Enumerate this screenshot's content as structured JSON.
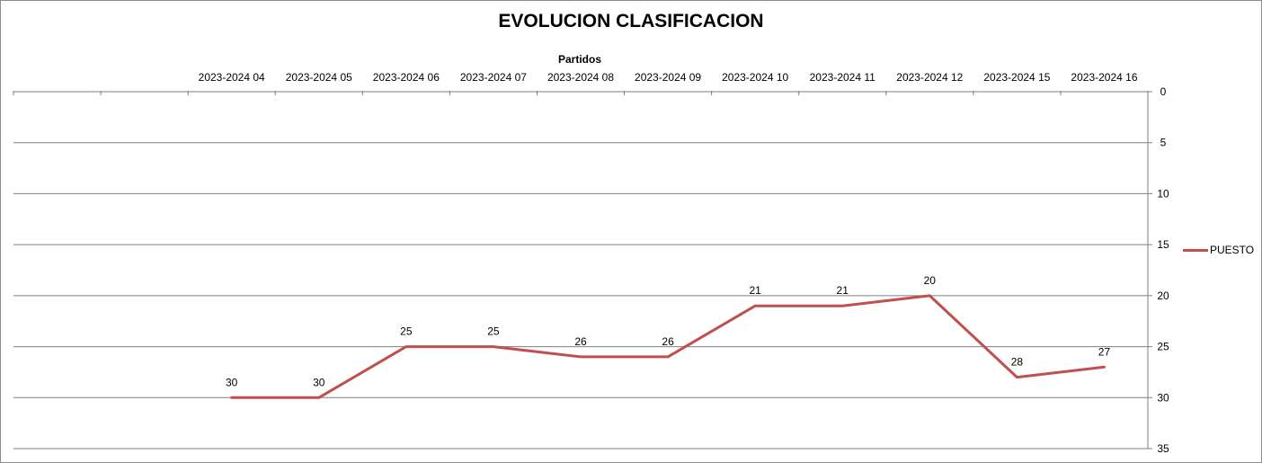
{
  "chart_data": {
    "type": "line",
    "title": "EVOLUCION CLASIFICACION",
    "xlabel": "Partidos",
    "ylabel": "",
    "y_reversed": true,
    "ylim": [
      0,
      35
    ],
    "yticks": [
      0,
      5,
      10,
      15,
      20,
      25,
      30,
      35
    ],
    "grid": true,
    "legend_position": "right",
    "categories": [
      "",
      "",
      "2023-2024 04",
      "2023-2024 05",
      "2023-2024 06",
      "2023-2024 07",
      "2023-2024 08",
      "2023-2024 09",
      "2023-2024 10",
      "2023-2024 11",
      "2023-2024 12",
      "2023-2024 15",
      "2023-2024 16"
    ],
    "series": [
      {
        "name": "PUESTO",
        "color": "#c0504d",
        "values": [
          null,
          null,
          30,
          30,
          25,
          25,
          26,
          26,
          21,
          21,
          20,
          28,
          27
        ]
      }
    ]
  }
}
